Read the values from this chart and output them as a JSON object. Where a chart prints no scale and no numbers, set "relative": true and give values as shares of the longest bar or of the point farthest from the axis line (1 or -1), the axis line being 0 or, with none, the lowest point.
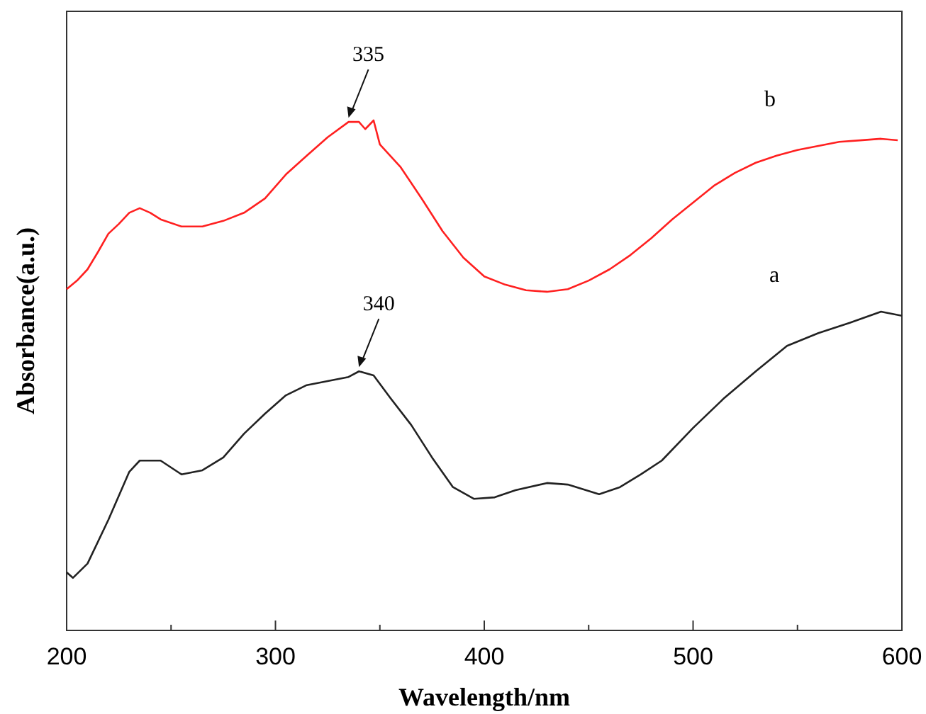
{
  "chart_data": {
    "type": "line",
    "relative": true,
    "xlabel": "Wavelength/nm",
    "ylabel": "Absorbance(a.u.)",
    "xlim": [
      200,
      600
    ],
    "xticks": [
      200,
      {
        "value": 250,
        "label": null
      },
      300,
      {
        "value": 350,
        "label": null
      },
      400,
      {
        "value": 450,
        "label": null
      },
      500,
      {
        "value": 550,
        "label": null
      },
      600
    ],
    "grid": false,
    "legend": false,
    "marker": "none",
    "line_style": "solid",
    "annotations": [
      {
        "text": "335",
        "x": 335,
        "y": 0.997
      },
      {
        "text": "340",
        "x": 340,
        "y": 0.508
      }
    ],
    "series": [
      {
        "name": "b",
        "color": "#ff2020",
        "x": [
          200,
          205,
          210,
          215,
          220,
          225,
          230,
          235,
          240,
          245,
          255,
          265,
          275,
          285,
          295,
          305,
          315,
          325,
          335,
          340,
          343,
          347,
          350,
          360,
          370,
          380,
          390,
          400,
          410,
          420,
          430,
          440,
          450,
          460,
          470,
          480,
          490,
          500,
          510,
          520,
          530,
          540,
          550,
          560,
          570,
          580,
          590,
          598
        ],
        "values": [
          0.669,
          0.686,
          0.708,
          0.742,
          0.778,
          0.797,
          0.819,
          0.828,
          0.819,
          0.806,
          0.792,
          0.792,
          0.803,
          0.819,
          0.847,
          0.894,
          0.931,
          0.967,
          0.997,
          0.997,
          0.983,
          1.0,
          0.953,
          0.908,
          0.847,
          0.783,
          0.731,
          0.694,
          0.678,
          0.667,
          0.664,
          0.669,
          0.686,
          0.708,
          0.736,
          0.769,
          0.806,
          0.839,
          0.872,
          0.897,
          0.917,
          0.931,
          0.942,
          0.95,
          0.958,
          0.961,
          0.964,
          0.961
        ]
      },
      {
        "name": "a",
        "color": "#222222",
        "x": [
          200,
          203,
          210,
          220,
          230,
          235,
          245,
          255,
          265,
          275,
          285,
          295,
          305,
          315,
          325,
          335,
          340,
          347,
          355,
          365,
          375,
          385,
          395,
          405,
          415,
          430,
          440,
          455,
          465,
          475,
          485,
          500,
          515,
          530,
          545,
          560,
          575,
          590,
          600
        ],
        "values": [
          0.114,
          0.103,
          0.131,
          0.217,
          0.311,
          0.333,
          0.333,
          0.306,
          0.314,
          0.339,
          0.386,
          0.425,
          0.461,
          0.481,
          0.489,
          0.497,
          0.508,
          0.5,
          0.456,
          0.403,
          0.339,
          0.281,
          0.258,
          0.261,
          0.275,
          0.289,
          0.286,
          0.267,
          0.281,
          0.306,
          0.333,
          0.397,
          0.456,
          0.508,
          0.558,
          0.583,
          0.603,
          0.625,
          0.617
        ]
      }
    ]
  }
}
